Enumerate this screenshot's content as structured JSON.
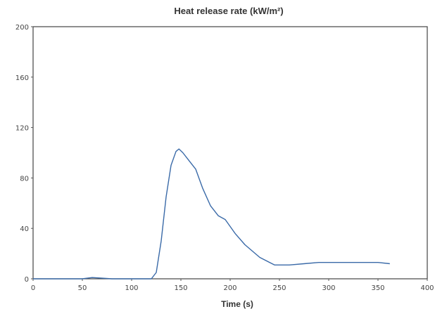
{
  "chart_data": {
    "type": "line",
    "title": "Heat release rate (kW/m²)",
    "xlabel": "Time (s)",
    "ylabel": "",
    "xlim": [
      0,
      400
    ],
    "ylim": [
      0,
      200
    ],
    "x_ticks": [
      "0",
      "50",
      "100",
      "150",
      "200",
      "250",
      "300",
      "350",
      "400"
    ],
    "y_ticks": [
      "0",
      "40",
      "80",
      "120",
      "160",
      "200"
    ],
    "grid": false,
    "line_color": "#3a6aa8",
    "series": [
      {
        "x": [
          0,
          50,
          60,
          80,
          100,
          120,
          125,
          130,
          135,
          140,
          145,
          148,
          152,
          158,
          165,
          172,
          180,
          188,
          195,
          205,
          215,
          230,
          245,
          260,
          275,
          290,
          305,
          320,
          335,
          350,
          362
        ],
        "y": [
          0,
          0,
          1,
          0,
          0,
          0,
          5,
          30,
          65,
          90,
          101,
          103,
          100,
          94,
          87,
          72,
          58,
          50,
          47,
          36,
          27,
          17,
          11,
          11,
          12,
          13,
          13,
          13,
          13,
          13,
          12
        ]
      }
    ]
  }
}
